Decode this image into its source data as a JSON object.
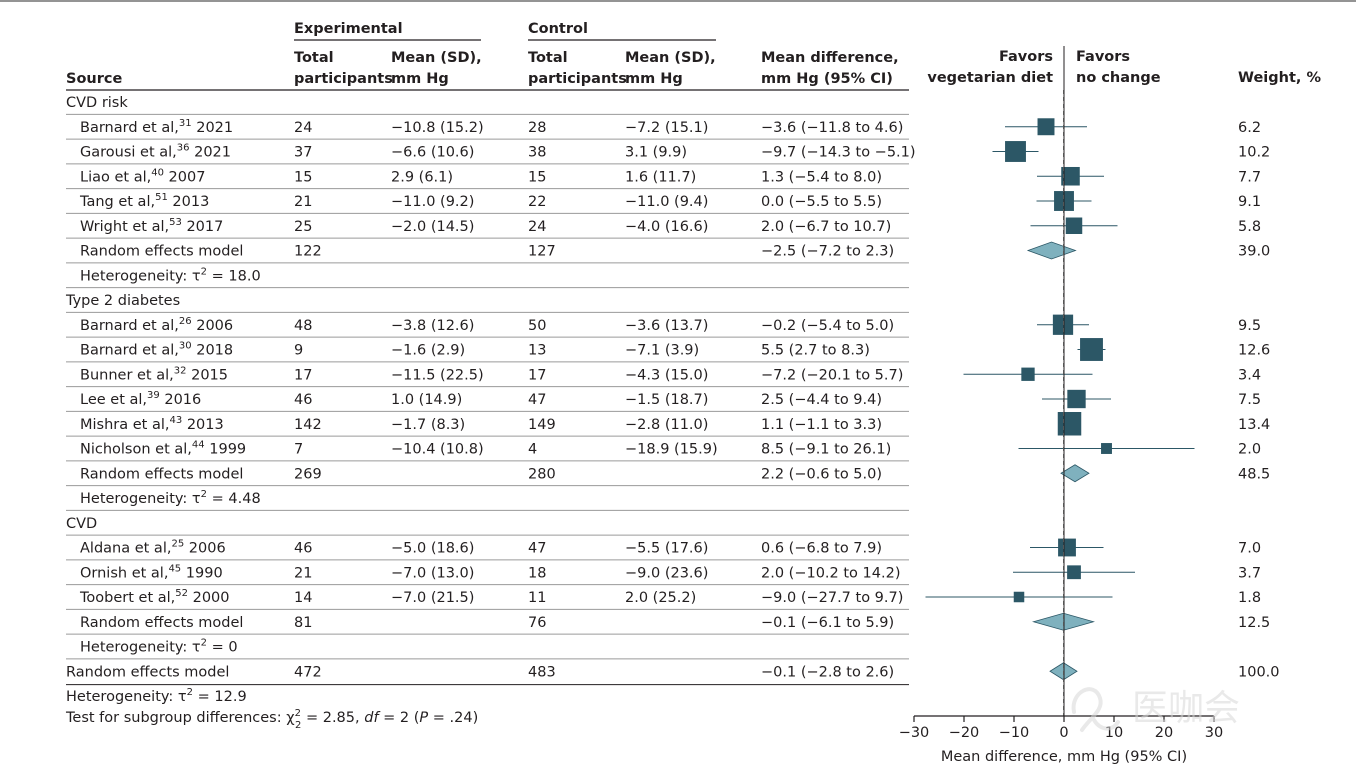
{
  "headers": {
    "source": "Source",
    "experimental": "Experimental",
    "control": "Control",
    "exp_total": [
      "Total",
      "participants"
    ],
    "exp_mean": [
      "Mean (SD),",
      "mm Hg"
    ],
    "ctl_total": [
      "Total",
      "participants"
    ],
    "ctl_mean": [
      "Mean (SD),",
      "mm Hg"
    ],
    "md": [
      "Mean difference,",
      "mm Hg (95% CI)"
    ],
    "favors_left": [
      "Favors",
      "vegetarian diet"
    ],
    "favors_right": [
      "Favors",
      "no change"
    ],
    "weight": "Weight, %"
  },
  "chart_data": {
    "type": "forest",
    "xlabel": "Mean difference, mm Hg (95% CI)",
    "xlim": [
      -30,
      30
    ],
    "xticks": [
      "−30",
      "−20",
      "−10",
      "0",
      "10",
      "20",
      "30"
    ],
    "xtick_values": [
      -30,
      -20,
      -10,
      0,
      10,
      20,
      30
    ],
    "null_line": 0,
    "pooled_line": -0.1,
    "rows": [
      {
        "kind": "group",
        "label": "CVD risk"
      },
      {
        "kind": "study",
        "author": "Barnard et al,",
        "ref": "31",
        "year": "2021",
        "e_n": "24",
        "e_m": "−10.8 (15.2)",
        "c_n": "28",
        "c_m": "−7.2 (15.1)",
        "ci": "−3.6 (−11.8 to 4.6)",
        "w": "6.2",
        "est": -3.6,
        "lo": -11.8,
        "hi": 4.6,
        "weight": 6.2
      },
      {
        "kind": "study",
        "author": "Garousi et al,",
        "ref": "36",
        "year": "2021",
        "e_n": "37",
        "e_m": "−6.6 (10.6)",
        "c_n": "38",
        "c_m": "3.1 (9.9)",
        "ci": "−9.7 (−14.3 to −5.1)",
        "w": "10.2",
        "est": -9.7,
        "lo": -14.3,
        "hi": -5.1,
        "weight": 10.2
      },
      {
        "kind": "study",
        "author": "Liao et al,",
        "ref": "40",
        "year": "2007",
        "e_n": "15",
        "e_m": "2.9 (6.1)",
        "c_n": "15",
        "c_m": "1.6 (11.7)",
        "ci": "1.3 (−5.4 to 8.0)",
        "w": "7.7",
        "est": 1.3,
        "lo": -5.4,
        "hi": 8.0,
        "weight": 7.7
      },
      {
        "kind": "study",
        "author": "Tang et al,",
        "ref": "51",
        "year": "2013",
        "e_n": "21",
        "e_m": "−11.0 (9.2)",
        "c_n": "22",
        "c_m": "−11.0 (9.4)",
        "ci": "0.0 (−5.5 to 5.5)",
        "w": "9.1",
        "est": 0.0,
        "lo": -5.5,
        "hi": 5.5,
        "weight": 9.1
      },
      {
        "kind": "study",
        "author": "Wright et al,",
        "ref": "53",
        "year": "2017",
        "e_n": "25",
        "e_m": "−2.0 (14.5)",
        "c_n": "24",
        "c_m": "−4.0 (16.6)",
        "ci": "2.0 (−6.7 to 10.7)",
        "w": "5.8",
        "est": 2.0,
        "lo": -6.7,
        "hi": 10.7,
        "weight": 5.8
      },
      {
        "kind": "pooled",
        "label": "Random effects model",
        "e_n": "122",
        "c_n": "127",
        "ci": "−2.5 (−7.2 to 2.3)",
        "w": "39.0",
        "est": -2.5,
        "lo": -7.2,
        "hi": 2.3
      },
      {
        "kind": "het",
        "label": "Heterogeneity: τ",
        "sup": "2",
        "rest": " = 18.0"
      },
      {
        "kind": "group",
        "label": "Type 2 diabetes"
      },
      {
        "kind": "study",
        "author": "Barnard et al,",
        "ref": "26",
        "year": "2006",
        "e_n": "48",
        "e_m": "−3.8 (12.6)",
        "c_n": "50",
        "c_m": "−3.6 (13.7)",
        "ci": "−0.2 (−5.4 to 5.0)",
        "w": "9.5",
        "est": -0.2,
        "lo": -5.4,
        "hi": 5.0,
        "weight": 9.5
      },
      {
        "kind": "study",
        "author": "Barnard et al,",
        "ref": "30",
        "year": "2018",
        "e_n": "9",
        "e_m": "−1.6 (2.9)",
        "c_n": "13",
        "c_m": "−7.1 (3.9)",
        "ci": "5.5 (2.7 to 8.3)",
        "w": "12.6",
        "est": 5.5,
        "lo": 2.7,
        "hi": 8.3,
        "weight": 12.6
      },
      {
        "kind": "study",
        "author": "Bunner et al,",
        "ref": "32",
        "year": "2015",
        "e_n": "17",
        "e_m": "−11.5 (22.5)",
        "c_n": "17",
        "c_m": "−4.3 (15.0)",
        "ci": "−7.2 (−20.1 to 5.7)",
        "w": "3.4",
        "est": -7.2,
        "lo": -20.1,
        "hi": 5.7,
        "weight": 3.4
      },
      {
        "kind": "study",
        "author": "Lee et al,",
        "ref": "39",
        "year": "2016",
        "e_n": "46",
        "e_m": "1.0 (14.9)",
        "c_n": "47",
        "c_m": "−1.5 (18.7)",
        "ci": "2.5 (−4.4 to 9.4)",
        "w": "7.5",
        "est": 2.5,
        "lo": -4.4,
        "hi": 9.4,
        "weight": 7.5
      },
      {
        "kind": "study",
        "author": "Mishra et al,",
        "ref": "43",
        "year": "2013",
        "e_n": "142",
        "e_m": "−1.7 (8.3)",
        "c_n": "149",
        "c_m": "−2.8 (11.0)",
        "ci": "1.1 (−1.1 to 3.3)",
        "w": "13.4",
        "est": 1.1,
        "lo": -1.1,
        "hi": 3.3,
        "weight": 13.4
      },
      {
        "kind": "study",
        "author": "Nicholson et al,",
        "ref": "44",
        "year": "1999",
        "e_n": "7",
        "e_m": "−10.4 (10.8)",
        "c_n": "4",
        "c_m": "−18.9 (15.9)",
        "ci": "8.5 (−9.1 to 26.1)",
        "w": "2.0",
        "est": 8.5,
        "lo": -9.1,
        "hi": 26.1,
        "weight": 2.0
      },
      {
        "kind": "pooled",
        "label": "Random effects model",
        "e_n": "269",
        "c_n": "280",
        "ci": "2.2 (−0.6 to 5.0)",
        "w": "48.5",
        "est": 2.2,
        "lo": -0.6,
        "hi": 5.0
      },
      {
        "kind": "het",
        "label": "Heterogeneity: τ",
        "sup": "2",
        "rest": " = 4.48"
      },
      {
        "kind": "group",
        "label": "CVD"
      },
      {
        "kind": "study",
        "author": "Aldana et al,",
        "ref": "25",
        "year": "2006",
        "e_n": "46",
        "e_m": "−5.0 (18.6)",
        "c_n": "47",
        "c_m": "−5.5 (17.6)",
        "ci": "0.6 (−6.8 to 7.9)",
        "w": "7.0",
        "est": 0.6,
        "lo": -6.8,
        "hi": 7.9,
        "weight": 7.0
      },
      {
        "kind": "study",
        "author": "Ornish et al,",
        "ref": "45",
        "year": "1990",
        "e_n": "21",
        "e_m": "−7.0 (13.0)",
        "c_n": "18",
        "c_m": "−9.0 (23.6)",
        "ci": "2.0 (−10.2 to 14.2)",
        "w": "3.7",
        "est": 2.0,
        "lo": -10.2,
        "hi": 14.2,
        "weight": 3.7
      },
      {
        "kind": "study",
        "author": "Toobert et al,",
        "ref": "52",
        "year": "2000",
        "e_n": "14",
        "e_m": "−7.0 (21.5)",
        "c_n": "11",
        "c_m": "2.0 (25.2)",
        "ci": "−9.0 (−27.7 to 9.7)",
        "w": "1.8",
        "est": -9.0,
        "lo": -27.7,
        "hi": 9.7,
        "weight": 1.8
      },
      {
        "kind": "pooled",
        "label": "Random effects model",
        "e_n": "81",
        "c_n": "76",
        "ci": "−0.1 (−6.1 to 5.9)",
        "w": "12.5",
        "est": -0.1,
        "lo": -6.1,
        "hi": 5.9
      },
      {
        "kind": "het",
        "label": "Heterogeneity: τ",
        "sup": "2",
        "rest": " = 0"
      },
      {
        "kind": "overall",
        "label": "Random effects model",
        "e_n": "472",
        "c_n": "483",
        "ci": "−0.1 (−2.8 to 2.6)",
        "w": "100.0",
        "est": -0.1,
        "lo": -2.8,
        "hi": 2.6
      }
    ],
    "footer_het": {
      "label": "Heterogeneity: τ",
      "sup": "2",
      "rest": " = 12.9"
    },
    "footer_test": {
      "label": "Test for subgroup differences: χ",
      "sup": "2",
      "sub": "2",
      "mid": " = 2.85, ",
      "df_italic": "df",
      "rest1": " = 2 (",
      "p_italic": "P",
      "rest2": " = .24)"
    }
  },
  "colors": {
    "marker": "#2c5766",
    "diamond_fill": "#7fb1be",
    "diamond_stroke": "#2c5766",
    "text": "#231f20",
    "rule": "#9a9a9a"
  },
  "watermark": {
    "text": "医咖会"
  }
}
